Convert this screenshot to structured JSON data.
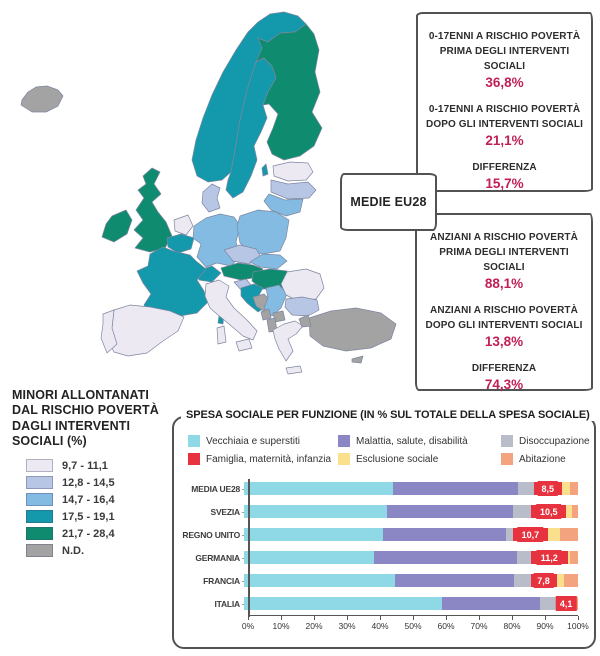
{
  "accent_color": "#c01f56",
  "map": {
    "legend": {
      "title_lines": [
        "MINORI ALLONTANATI",
        "DAL RISCHIO POVERTÀ",
        "DAGLI INTERVENTI",
        "SOCIALI (%)"
      ],
      "items": [
        {
          "label": "9,7 - 11,1",
          "color": "#ece9f3"
        },
        {
          "label": "12,8 - 14,5",
          "color": "#b8c6e6"
        },
        {
          "label": "14,7 - 16,4",
          "color": "#84bbe3"
        },
        {
          "label": "17,5 - 19,1",
          "color": "#1399ab"
        },
        {
          "label": "21,7 - 28,4",
          "color": "#0f8c70"
        },
        {
          "label": "N.D.",
          "color": "#a3a3a3"
        }
      ]
    },
    "countries": {
      "islanda": "#a3a3a3",
      "norvegia": "#1399ab",
      "svezia": "#1399ab",
      "finlandia": "#0f8c70",
      "estonia": "#ece9f3",
      "lettonia": "#b8c6e6",
      "lituania": "#84bbe3",
      "danimarca": "#b8c6e6",
      "regno_unito": "#0f8c70",
      "irlanda": "#0f8c70",
      "paesi_bassi": "#ece9f3",
      "belgio": "#1399ab",
      "germania": "#84bbe3",
      "polonia": "#84bbe3",
      "repubblica_ceca": "#b8c6e6",
      "slovacchia": "#84bbe3",
      "austria": "#0f8c70",
      "ungheria": "#0f8c70",
      "svizzera": "#1399ab",
      "francia": "#1399ab",
      "spagna": "#ece9f3",
      "portogallo": "#ece9f3",
      "italia": "#ece9f3",
      "slovenia": "#b8c6e6",
      "croazia": "#1399ab",
      "bosnia": "#a3a3a3",
      "serbia": "#84bbe3",
      "montenegro": "#a3a3a3",
      "macedonia": "#a3a3a3",
      "albania": "#a3a3a3",
      "romania": "#ece9f3",
      "bulgaria": "#b8c6e6",
      "grecia": "#ece9f3",
      "turchia": "#a3a3a3",
      "cipro": "#a3a3a3"
    }
  },
  "callouts": {
    "medie_label": "MEDIE EU28",
    "minori": {
      "rows": [
        {
          "label1": "0-17ENNI A RISCHIO POVERTÀ",
          "label2": "PRIMA DEGLI INTERVENTI SOCIALI",
          "value": "36,8%"
        },
        {
          "label1": "0-17ENNI A RISCHIO POVERTÀ",
          "label2": "DOPO GLI INTERVENTI SOCIALI",
          "value": "21,1%"
        },
        {
          "label1": "DIFFERENZA",
          "value": "15,7%"
        }
      ]
    },
    "anziani": {
      "rows": [
        {
          "label1": "ANZIANI A RISCHIO POVERTÀ",
          "label2": "PRIMA DEGLI INTERVENTI SOCIALI",
          "value": "88,1%"
        },
        {
          "label1": "ANZIANI A RISCHIO POVERTÀ",
          "label2": "DOPO GLI INTERVENTI SOCIALI",
          "value": "13,8%"
        },
        {
          "label1": "DIFFERENZA",
          "value": "74,3%"
        }
      ]
    }
  },
  "chart_data": {
    "type": "bar",
    "stacked": true,
    "orientation": "horizontal",
    "title": "SPESA SOCIALE PER FUNZIONE (IN % SUL TOTALE DELLA SPESA SOCIALE)",
    "categories": [
      "MEDIA UE28",
      "SVEZIA",
      "REGNO UNITO",
      "GERMANIA",
      "FRANCIA",
      "ITALIA"
    ],
    "series": [
      {
        "name": "Vecchiaia e superstiti",
        "color": "#8fd9e6",
        "values": [
          44.6,
          42.7,
          41.7,
          38.8,
          45.3,
          59.3
        ]
      },
      {
        "name": "Malattia, salute, disabilità",
        "color": "#8b87c4",
        "values": [
          37.4,
          37.9,
          36.6,
          42.9,
          35.6,
          29.3
        ]
      },
      {
        "name": "Disoccupazione",
        "color": "#b9bcc9",
        "values": [
          4.7,
          5.4,
          2.1,
          4.1,
          4.9,
          5.8
        ]
      },
      {
        "name": "Famiglia, maternità, infanzia",
        "color": "#e6333f",
        "values": [
          8.5,
          10.5,
          10.7,
          11.2,
          7.8,
          4.1
        ],
        "labels": [
          "8,5",
          "10,5",
          "10,7",
          "11,2",
          "7,8",
          "4,1"
        ]
      },
      {
        "name": "Esclusione sociale",
        "color": "#fae08c",
        "values": [
          2.4,
          1.7,
          3.5,
          0.5,
          2.2,
          0.8
        ]
      },
      {
        "name": "Abitazione",
        "color": "#f3a47e",
        "values": [
          2.4,
          1.8,
          5.4,
          2.5,
          4.2,
          0.7
        ]
      }
    ],
    "x_ticks": [
      "0%",
      "10%",
      "20%",
      "30%",
      "40%",
      "50%",
      "60%",
      "70%",
      "80%",
      "90%",
      "100%"
    ],
    "xlim": [
      0,
      100
    ],
    "legend_position": "top"
  }
}
